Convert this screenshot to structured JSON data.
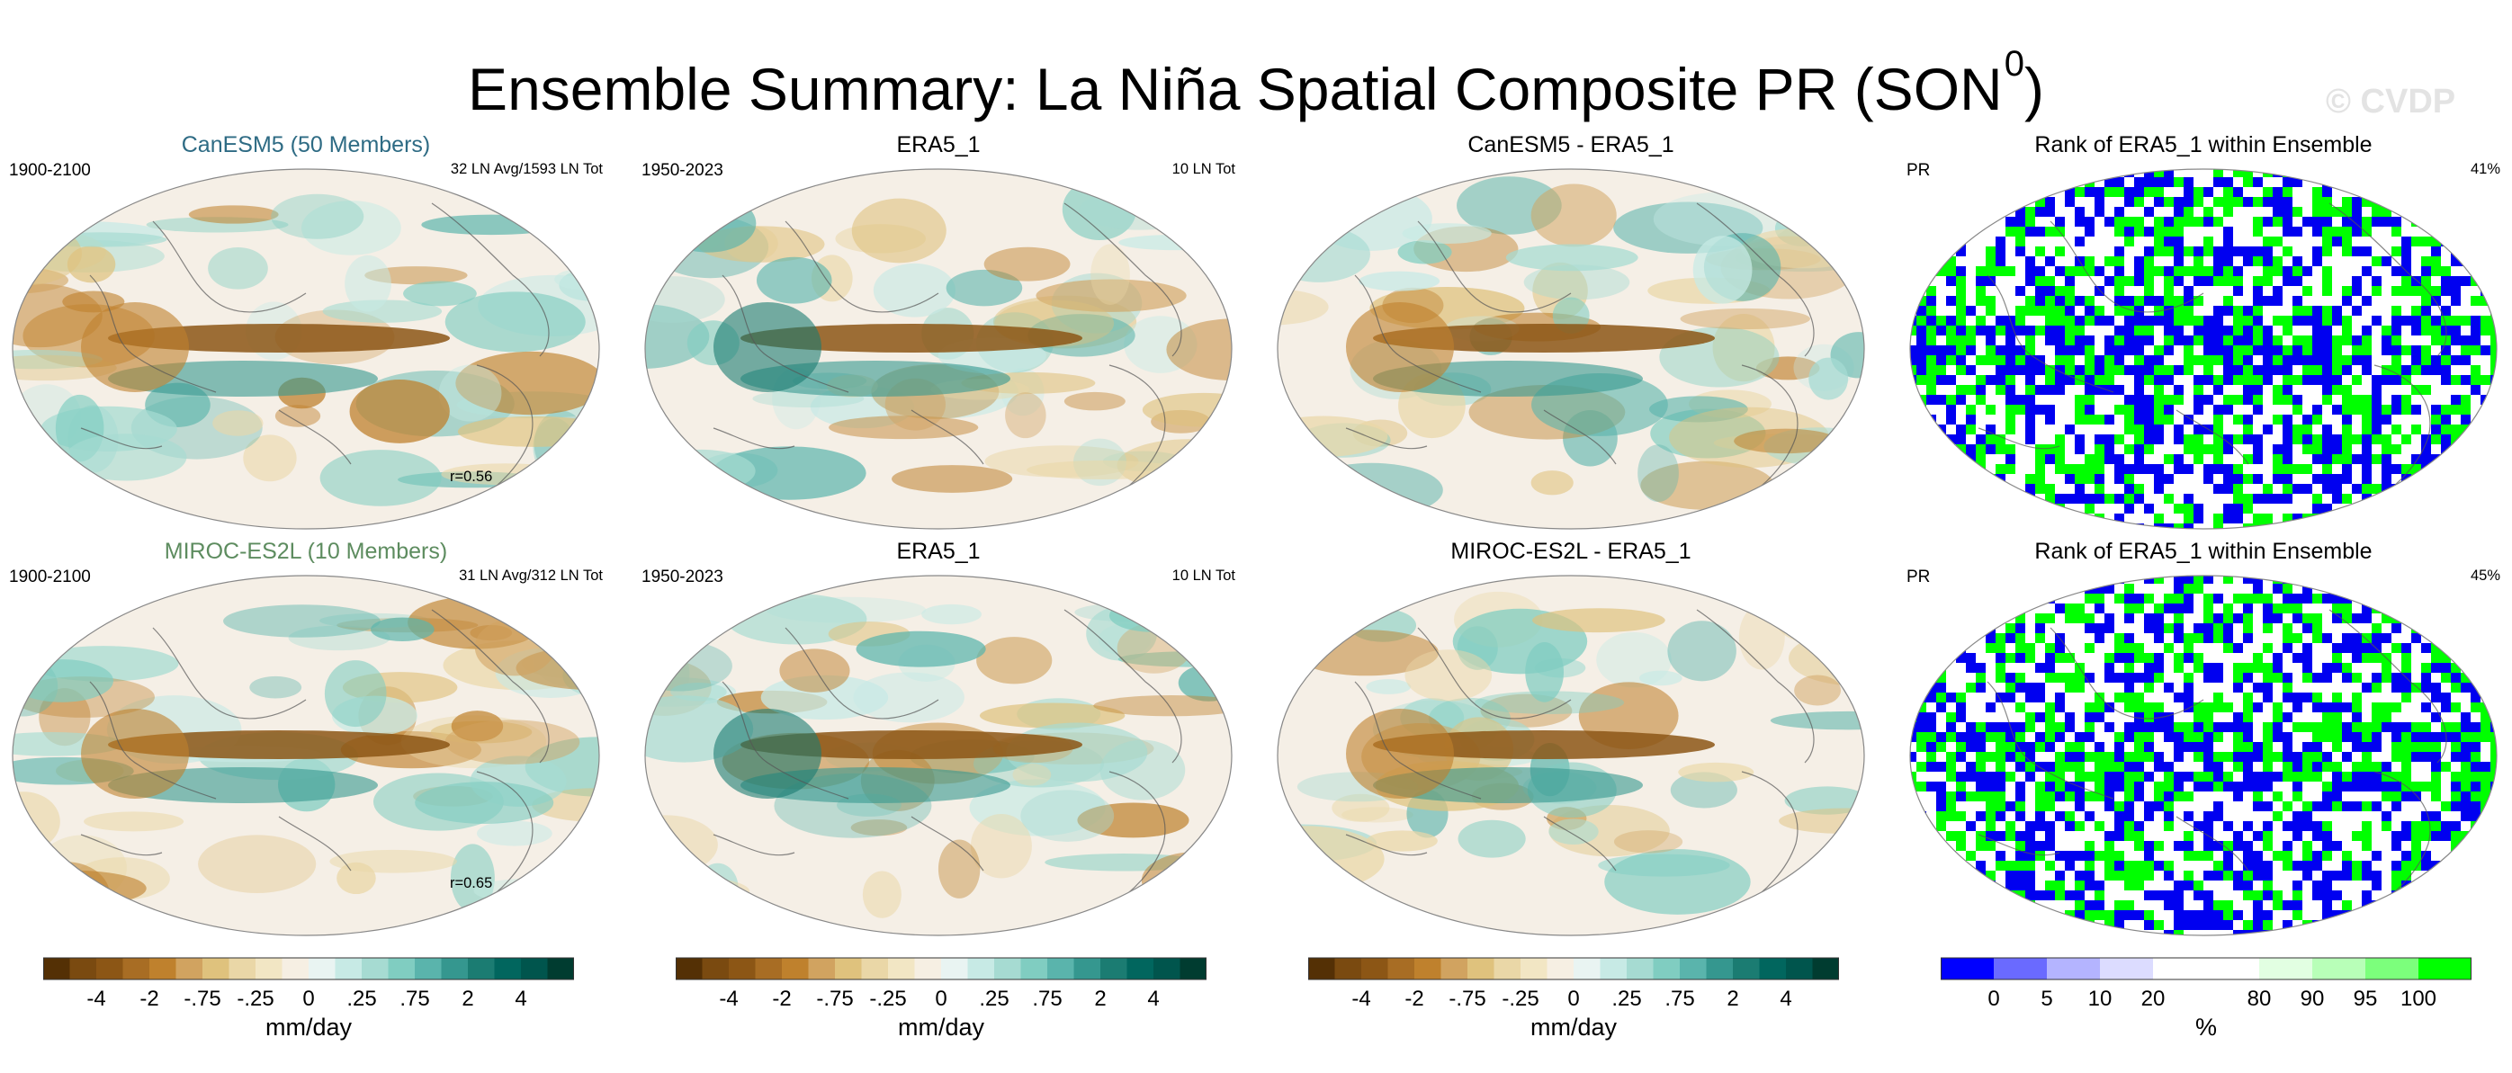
{
  "title_main": "Ensemble Summary: La Niña Spatial Composite PR (SON",
  "title_sup": "0",
  "title_end": ")",
  "watermark": "© CVDP",
  "rows": [
    {
      "model": {
        "title": "CanESM5 (50 Members)",
        "title_color": "#2e6b84",
        "period": "1900-2100",
        "stat": "32 LN Avg/1593 LN Tot",
        "corr": "r=0.56"
      },
      "obs": {
        "title": "ERA5_1",
        "period": "1950-2023",
        "stat": "10 LN Tot"
      },
      "diff": {
        "title": "CanESM5 - ERA5_1"
      },
      "rank": {
        "title": "Rank of ERA5_1 within Ensemble",
        "var": "PR",
        "pct": "41%"
      }
    },
    {
      "model": {
        "title": "MIROC-ES2L (10 Members)",
        "title_color": "#5d8c5f",
        "period": "1900-2100",
        "stat": "31 LN Avg/312 LN Tot",
        "corr": "r=0.65"
      },
      "obs": {
        "title": "ERA5_1",
        "period": "1950-2023",
        "stat": "10 LN Tot"
      },
      "diff": {
        "title": "MIROC-ES2L - ERA5_1"
      },
      "rank": {
        "title": "Rank of ERA5_1 within Ensemble",
        "var": "PR",
        "pct": "45%"
      }
    }
  ],
  "colorbar_pr": {
    "colors": [
      "#543005",
      "#7a4a10",
      "#8c5615",
      "#a86d24",
      "#bf812d",
      "#d1a360",
      "#dfc27d",
      "#ead7a7",
      "#f2e6c4",
      "#f6efe3",
      "#e9f4f2",
      "#c7eae5",
      "#a6dbd2",
      "#80cdc1",
      "#5ab4ac",
      "#35978f",
      "#1b7c72",
      "#01665e",
      "#00554d",
      "#003c30"
    ],
    "ticks": [
      "-4",
      "-2",
      "-.75",
      "-.25",
      "0",
      ".25",
      ".75",
      "2",
      "4"
    ],
    "unit": "mm/day"
  },
  "colorbar_rank": {
    "colors": [
      "#0000ff",
      "#6a6aff",
      "#b4b4ff",
      "#dcdcff",
      "#ffffff",
      "#ffffff",
      "#e2ffe2",
      "#b8ffb8",
      "#7cff7c",
      "#00ff00"
    ],
    "ticks": [
      "0",
      "5",
      "10",
      "20",
      "80",
      "90",
      "95",
      "100"
    ],
    "unit": "%"
  },
  "map_palette": {
    "ocean_bg": "#f5efe6",
    "land_line": "#555555",
    "rank_blue": "#0000f0",
    "rank_green": "#00ff00"
  }
}
